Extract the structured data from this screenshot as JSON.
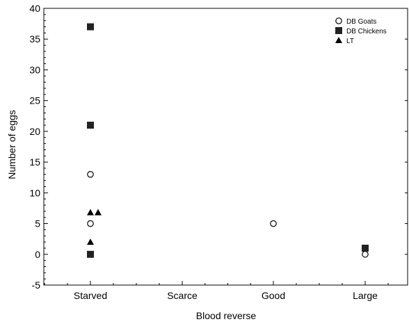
{
  "chart_data": {
    "type": "scatter",
    "xlabel": "Blood reverse",
    "ylabel": "Number of eggs",
    "categories": [
      "Starved",
      "Scarce",
      "Good",
      "Large"
    ],
    "ylim": [
      -5,
      40
    ],
    "yticks": [
      -5,
      0,
      5,
      10,
      15,
      20,
      25,
      30,
      35,
      40
    ],
    "legend_position": "top-right",
    "grid": false,
    "series": [
      {
        "name": "DB Goats",
        "marker": "open-circle",
        "points": [
          {
            "category": "Starved",
            "y": 13
          },
          {
            "category": "Starved",
            "y": 5
          },
          {
            "category": "Good",
            "y": 5
          },
          {
            "category": "Large",
            "y": 0
          }
        ]
      },
      {
        "name": "DB Chickens",
        "marker": "filled-square",
        "points": [
          {
            "category": "Starved",
            "y": 37
          },
          {
            "category": "Starved",
            "y": 21
          },
          {
            "category": "Starved",
            "y": 0
          },
          {
            "category": "Large",
            "y": 1
          }
        ]
      },
      {
        "name": "LT",
        "marker": "filled-triangle",
        "points": [
          {
            "category": "Starved",
            "y": 6.8
          },
          {
            "category": "Starved",
            "y": 6.8
          },
          {
            "category": "Starved",
            "y": 2
          }
        ]
      }
    ]
  }
}
